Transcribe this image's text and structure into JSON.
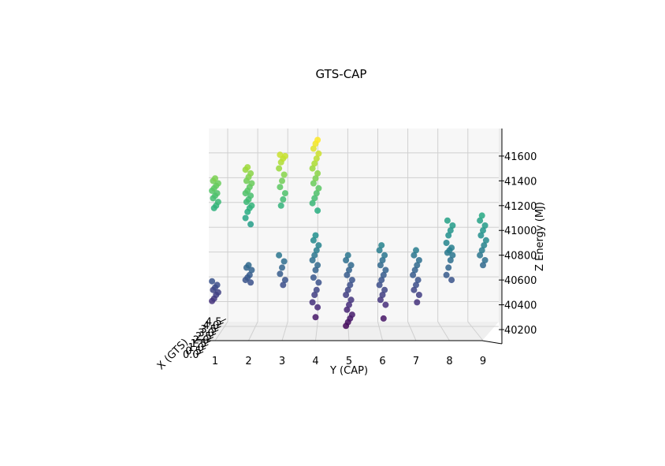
{
  "chart_data": {
    "type": "scatter",
    "title": "GTS-CAP",
    "xlabel": "Y (CAP)",
    "ylabel": "Z Energy (MJ)",
    "depth_label": "X (GTS)",
    "x_ticks": [
      "1",
      "2",
      "3",
      "4",
      "5",
      "6",
      "7",
      "8",
      "9"
    ],
    "z_ticks": [
      "40200",
      "40400",
      "40600",
      "40800",
      "41000",
      "41200",
      "41400",
      "41600"
    ],
    "depth_ticks": [
      "0.0",
      "0.5",
      "1.0",
      "1.5",
      "2.0",
      "2.5",
      "3.0",
      "3.5",
      "4.0",
      "4.5"
    ],
    "xlim": [
      0.6,
      9.4
    ],
    "zlim": [
      40100,
      41800
    ],
    "colormap": "viridis",
    "grid": true,
    "points": [
      [
        1,
        40430
      ],
      [
        1,
        40450
      ],
      [
        1,
        40480
      ],
      [
        1,
        40500
      ],
      [
        1,
        40520
      ],
      [
        1,
        40540
      ],
      [
        1,
        40560
      ],
      [
        1,
        40590
      ],
      [
        1,
        41180
      ],
      [
        1,
        41200
      ],
      [
        1,
        41230
      ],
      [
        1,
        41260
      ],
      [
        1,
        41280
      ],
      [
        1,
        41300
      ],
      [
        1,
        41320
      ],
      [
        1,
        41340
      ],
      [
        1,
        41360
      ],
      [
        1,
        41380
      ],
      [
        1,
        41400
      ],
      [
        1,
        41420
      ],
      [
        2,
        40580
      ],
      [
        2,
        40600
      ],
      [
        2,
        40620
      ],
      [
        2,
        40640
      ],
      [
        2,
        40680
      ],
      [
        2,
        40700
      ],
      [
        2,
        40720
      ],
      [
        2,
        41050
      ],
      [
        2,
        41100
      ],
      [
        2,
        41150
      ],
      [
        2,
        41180
      ],
      [
        2,
        41200
      ],
      [
        2,
        41230
      ],
      [
        2,
        41250
      ],
      [
        2,
        41280
      ],
      [
        2,
        41300
      ],
      [
        2,
        41320
      ],
      [
        2,
        41350
      ],
      [
        2,
        41380
      ],
      [
        2,
        41400
      ],
      [
        2,
        41430
      ],
      [
        2,
        41460
      ],
      [
        2,
        41490
      ],
      [
        2,
        41510
      ],
      [
        3,
        40560
      ],
      [
        3,
        40600
      ],
      [
        3,
        40650
      ],
      [
        3,
        40700
      ],
      [
        3,
        40750
      ],
      [
        3,
        40800
      ],
      [
        3,
        41200
      ],
      [
        3,
        41250
      ],
      [
        3,
        41300
      ],
      [
        3,
        41350
      ],
      [
        3,
        41400
      ],
      [
        3,
        41450
      ],
      [
        3,
        41500
      ],
      [
        3,
        41550
      ],
      [
        3,
        41580
      ],
      [
        3,
        41600
      ],
      [
        3,
        41610
      ],
      [
        4,
        40300
      ],
      [
        4,
        40380
      ],
      [
        4,
        40420
      ],
      [
        4,
        40480
      ],
      [
        4,
        40520
      ],
      [
        4,
        40580
      ],
      [
        4,
        40620
      ],
      [
        4,
        40680
      ],
      [
        4,
        40720
      ],
      [
        4,
        40760
      ],
      [
        4,
        40800
      ],
      [
        4,
        40840
      ],
      [
        4,
        40880
      ],
      [
        4,
        40920
      ],
      [
        4,
        40960
      ],
      [
        4,
        41160
      ],
      [
        4,
        41220
      ],
      [
        4,
        41260
      ],
      [
        4,
        41300
      ],
      [
        4,
        41340
      ],
      [
        4,
        41380
      ],
      [
        4,
        41420
      ],
      [
        4,
        41460
      ],
      [
        4,
        41500
      ],
      [
        4,
        41540
      ],
      [
        4,
        41580
      ],
      [
        4,
        41620
      ],
      [
        4,
        41660
      ],
      [
        4,
        41700
      ],
      [
        4,
        41730
      ],
      [
        5,
        40230
      ],
      [
        5,
        40260
      ],
      [
        5,
        40290
      ],
      [
        5,
        40320
      ],
      [
        5,
        40360
      ],
      [
        5,
        40400
      ],
      [
        5,
        40440
      ],
      [
        5,
        40480
      ],
      [
        5,
        40520
      ],
      [
        5,
        40560
      ],
      [
        5,
        40600
      ],
      [
        5,
        40640
      ],
      [
        5,
        40680
      ],
      [
        5,
        40720
      ],
      [
        5,
        40760
      ],
      [
        5,
        40800
      ],
      [
        6,
        40290
      ],
      [
        6,
        40400
      ],
      [
        6,
        40440
      ],
      [
        6,
        40480
      ],
      [
        6,
        40520
      ],
      [
        6,
        40560
      ],
      [
        6,
        40600
      ],
      [
        6,
        40640
      ],
      [
        6,
        40680
      ],
      [
        6,
        40720
      ],
      [
        6,
        40760
      ],
      [
        6,
        40800
      ],
      [
        6,
        40840
      ],
      [
        6,
        40880
      ],
      [
        7,
        40420
      ],
      [
        7,
        40480
      ],
      [
        7,
        40520
      ],
      [
        7,
        40560
      ],
      [
        7,
        40600
      ],
      [
        7,
        40640
      ],
      [
        7,
        40680
      ],
      [
        7,
        40720
      ],
      [
        7,
        40760
      ],
      [
        7,
        40800
      ],
      [
        7,
        40840
      ],
      [
        8,
        40600
      ],
      [
        8,
        40640
      ],
      [
        8,
        40700
      ],
      [
        8,
        40760
      ],
      [
        8,
        40800
      ],
      [
        8,
        40820
      ],
      [
        8,
        40840
      ],
      [
        8,
        40860
      ],
      [
        8,
        40900
      ],
      [
        8,
        40960
      ],
      [
        8,
        41000
      ],
      [
        8,
        41040
      ],
      [
        8,
        41080
      ],
      [
        9,
        40720
      ],
      [
        9,
        40760
      ],
      [
        9,
        40800
      ],
      [
        9,
        40840
      ],
      [
        9,
        40880
      ],
      [
        9,
        40920
      ],
      [
        9,
        40960
      ],
      [
        9,
        41000
      ],
      [
        9,
        41040
      ],
      [
        9,
        41080
      ],
      [
        9,
        41120
      ]
    ]
  }
}
